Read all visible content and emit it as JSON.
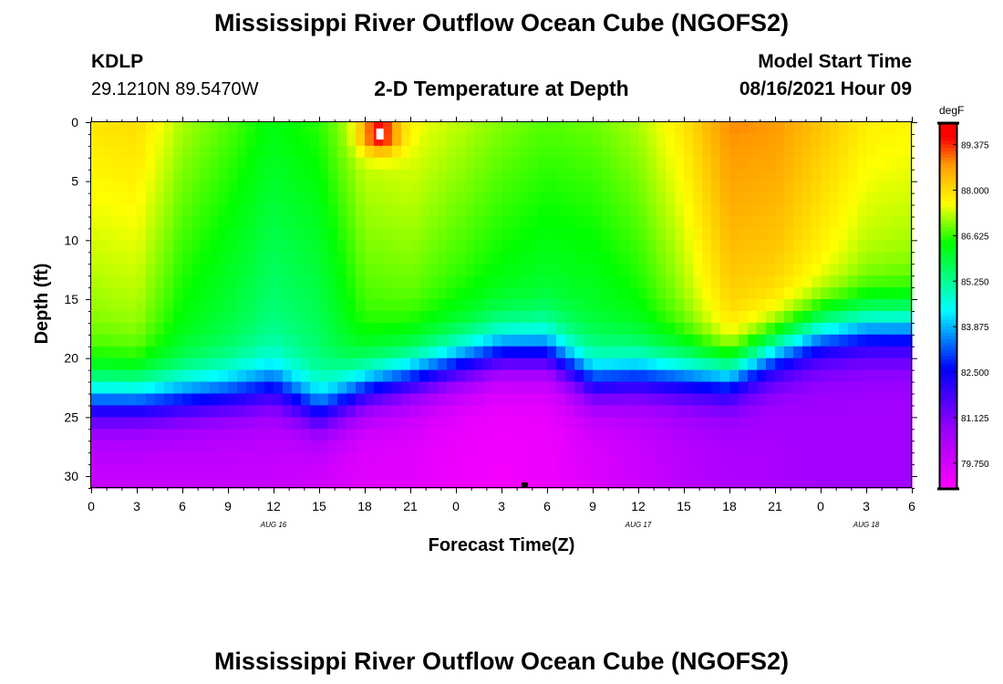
{
  "page": {
    "title_top": "Mississippi River Outflow Ocean Cube (NGOFS2)",
    "title_bottom": "Mississippi River Outflow Ocean Cube (NGOFS2)",
    "station_id": "KDLP",
    "station_coords": "29.1210N  89.5470W",
    "model_start_label": "Model Start Time",
    "model_start_value": "08/16/2021 Hour 09"
  },
  "colors": {
    "magenta": "#ff00ff",
    "purple": "#9900ff",
    "blue": "#0000ff",
    "cyan": "#00ffff",
    "green": "#00ff00",
    "yellow": "#ffff00",
    "orange": "#ff9900",
    "red": "#ff0000"
  },
  "chart_data": {
    "type": "heatmap",
    "title": "2-D Temperature at Depth",
    "xlabel": "Forecast Time(Z)",
    "ylabel": "Depth (ft)",
    "units": "degF",
    "x_range": [
      0,
      54
    ],
    "y_range": [
      0,
      31
    ],
    "x_tick_values": [
      0,
      3,
      6,
      9,
      12,
      15,
      18,
      21,
      24,
      27,
      30,
      33,
      36,
      39,
      42,
      45,
      48,
      51,
      54
    ],
    "x_tick_labels": [
      "0",
      "3",
      "6",
      "9",
      "12",
      "15",
      "18",
      "21",
      "0",
      "3",
      "6",
      "9",
      "12",
      "15",
      "18",
      "21",
      "0",
      "3",
      "6"
    ],
    "date_labels": [
      {
        "hour": 12,
        "label": "AUG 16"
      },
      {
        "hour": 36,
        "label": "AUG 17"
      },
      {
        "hour": 51,
        "label": "AUG 18"
      }
    ],
    "y_tick_values": [
      0,
      5,
      10,
      15,
      20,
      25,
      30
    ],
    "y_tick_labels": [
      "0",
      "5",
      "10",
      "15",
      "20",
      "25",
      "30"
    ],
    "colorbar": {
      "min": 79.0,
      "max": 90.0,
      "tick_values": [
        89.375,
        88.0,
        86.625,
        85.25,
        83.875,
        82.5,
        81.125,
        79.75
      ],
      "tick_labels": [
        "89.375",
        "88.000",
        "86.625",
        "85.250",
        "83.875",
        "82.500",
        "81.125",
        "79.750"
      ]
    },
    "grid": {
      "x": [
        0,
        3,
        6,
        9,
        12,
        15,
        18,
        21,
        24,
        27,
        30,
        33,
        36,
        39,
        42,
        45,
        48,
        51,
        54
      ],
      "y": [
        0,
        5,
        10,
        15,
        20,
        25,
        30
      ],
      "surface_temps": [
        87.9,
        88.0,
        87.2,
        86.8,
        86.3,
        86.6,
        87.5,
        87.6,
        87.3,
        87.0,
        86.8,
        86.9,
        87.2,
        87.9,
        88.9,
        88.8,
        88.3,
        87.8,
        87.7
      ],
      "thermocline_depths": [
        23.5,
        23.5,
        23.3,
        23.0,
        22.5,
        24.5,
        22.5,
        21.5,
        20.5,
        19.5,
        19.5,
        22.0,
        21.5,
        21.5,
        21.5,
        19.5,
        18.0,
        17.5,
        17.5
      ],
      "bottom_temps": [
        80.0,
        80.0,
        80.0,
        80.0,
        80.0,
        79.8,
        79.5,
        79.5,
        79.3,
        79.2,
        79.3,
        79.6,
        79.9,
        80.2,
        80.4,
        80.5,
        80.6,
        80.6,
        80.6
      ]
    },
    "hot_spot": {
      "x": 19,
      "y": 1,
      "value": 89.4
    }
  }
}
